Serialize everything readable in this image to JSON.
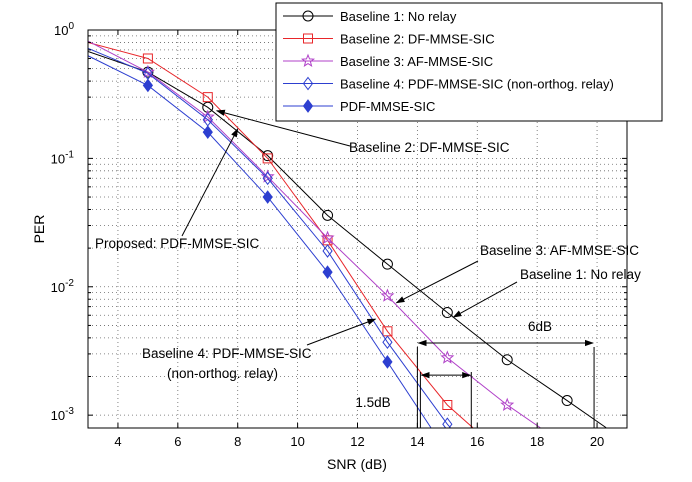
{
  "chart_data": {
    "type": "line",
    "xlabel": "SNR (dB)",
    "ylabel": "PER",
    "xlim": [
      3,
      21
    ],
    "ylim": [
      0.0008,
      1
    ],
    "yscale": "log",
    "grid": true,
    "xticks": [
      4,
      6,
      8,
      10,
      12,
      14,
      16,
      18,
      20
    ],
    "xtick_labels": [
      "4",
      "6",
      "8",
      "10",
      "12",
      "14",
      "16",
      "18",
      "20"
    ],
    "yticks": [
      {
        "value": 1,
        "base": "10",
        "exp": "0"
      },
      {
        "value": 0.1,
        "base": "10",
        "exp": "-1"
      },
      {
        "value": 0.01,
        "base": "10",
        "exp": "-2"
      },
      {
        "value": 0.001,
        "base": "10",
        "exp": "-3"
      }
    ],
    "legend_position": "top-right",
    "series": [
      {
        "name": "Baseline 1: No relay",
        "color": "#000000",
        "marker": "circle",
        "markers_only_at_labels": true,
        "x": [
          3,
          5,
          7,
          9,
          11,
          13,
          15,
          17,
          19,
          20.3
        ],
        "y": [
          0.68,
          0.47,
          0.25,
          0.105,
          0.036,
          0.015,
          0.0063,
          0.0027,
          0.0013,
          0.0008
        ],
        "mx": [
          5,
          7,
          9,
          11,
          13,
          15,
          17,
          19
        ]
      },
      {
        "name": "Baseline 2: DF-MMSE-SIC",
        "color": "#e8262a",
        "marker": "square",
        "x": [
          3,
          5,
          7,
          9,
          11,
          13,
          15,
          15.85
        ],
        "y": [
          0.8,
          0.6,
          0.3,
          0.1,
          0.023,
          0.0045,
          0.0012,
          0.0008
        ],
        "mx": [
          5,
          7,
          9,
          11,
          13,
          15
        ]
      },
      {
        "name": "Baseline 3: AF-MMSE-SIC",
        "color": "#b040c8",
        "marker": "star",
        "x": [
          3,
          5,
          7,
          9,
          11,
          13,
          15,
          17,
          18.1
        ],
        "y": [
          0.82,
          0.47,
          0.21,
          0.072,
          0.024,
          0.0085,
          0.0028,
          0.0012,
          0.0008
        ],
        "mx": [
          5,
          7,
          9,
          11,
          13,
          15,
          17
        ]
      },
      {
        "name": "Baseline 4: PDF-MMSE-SIC (non-orthog. relay)",
        "color": "#2d3fd0",
        "marker": "diamond-open",
        "x": [
          3,
          5,
          7,
          9,
          11,
          13,
          15,
          15.1
        ],
        "y": [
          0.72,
          0.46,
          0.2,
          0.07,
          0.019,
          0.0037,
          0.00085,
          0.0008
        ],
        "mx": [
          5,
          7,
          9,
          11,
          13,
          15
        ]
      },
      {
        "name": "PDF-MMSE-SIC",
        "color": "#2d3fd0",
        "marker": "diamond-filled",
        "x": [
          3,
          5,
          7,
          9,
          11,
          13,
          14.45
        ],
        "y": [
          0.63,
          0.37,
          0.16,
          0.05,
          0.013,
          0.0026,
          0.0008
        ],
        "mx": [
          5,
          7,
          9,
          11,
          13
        ]
      }
    ],
    "annotations": [
      {
        "text": "Baseline 2: DF-MMSE-SIC",
        "target": [
          7.3,
          0.235
        ]
      },
      {
        "text": "Proposed: PDF-MMSE-SIC",
        "target": [
          8.0,
          0.17
        ]
      },
      {
        "text": "Baseline 3: AF-MMSE-SIC",
        "target": [
          13.3,
          0.0075
        ]
      },
      {
        "text": "Baseline 1: No relay",
        "target": [
          15.2,
          0.0058
        ]
      },
      {
        "text": "Baseline 4: PDF-MMSE-SIC",
        "text2": "(non-orthog. relay)",
        "target": [
          12.6,
          0.0056
        ]
      }
    ],
    "gap_annotations": [
      {
        "label": "6dB",
        "from_x": 14.0,
        "to_x": 19.9,
        "at_y": 0.00365
      },
      {
        "label": "1.5dB",
        "from_x": 14.1,
        "to_x": 15.8,
        "at_y": 0.00205
      }
    ]
  }
}
